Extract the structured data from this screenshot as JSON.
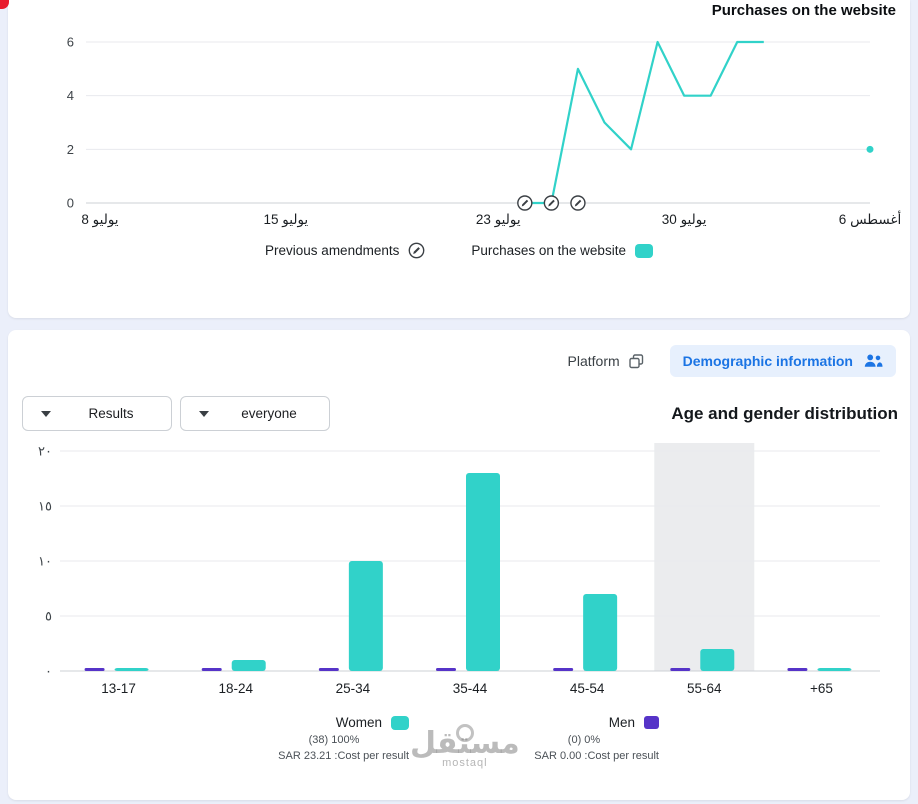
{
  "colors": {
    "teal": "#31d2c9",
    "purple": "#5634c8",
    "blue": "#1b74e4",
    "blue_bg": "#e7f0fd",
    "grid": "#e8eaee",
    "zero_axis": "#ccd0d6",
    "highlight_band": "#ebecee"
  },
  "purchases_panel": {
    "title": "Purchases on the website",
    "legend": [
      {
        "label": "Previous amendments",
        "icon": "pencil-circle-icon"
      },
      {
        "label": "Purchases on the website",
        "swatch": "#31d2c9"
      }
    ],
    "chart_data": {
      "type": "line",
      "title": "Purchases on the website",
      "ylim": [
        0,
        6
      ],
      "y_ticks": [
        0,
        2,
        4,
        6
      ],
      "xlim_days": [
        0,
        29
      ],
      "x_ticks": [
        {
          "day": 0,
          "label": "8 يوليو"
        },
        {
          "day": 7,
          "label": "15 يوليو"
        },
        {
          "day": 15,
          "label": "23 يوليو"
        },
        {
          "day": 22,
          "label": "30 يوليو"
        },
        {
          "day": 29,
          "label": "أغسطس 6"
        }
      ],
      "series": [
        {
          "name": "Purchases on the website",
          "color": "#31d2c9",
          "points": [
            [
              16,
              0
            ],
            [
              17,
              0
            ],
            [
              18,
              5
            ],
            [
              19,
              3
            ],
            [
              20,
              2
            ],
            [
              21,
              6
            ],
            [
              22,
              4
            ],
            [
              23,
              4
            ],
            [
              24,
              6
            ],
            [
              25,
              6
            ]
          ]
        }
      ],
      "isolated_point": [
        29,
        2
      ],
      "amendment_marker_days": [
        16,
        17,
        18
      ],
      "grid": true,
      "legend_position": "bottom"
    }
  },
  "demographics_panel": {
    "toolbar": {
      "platform_label": "Platform",
      "demographic_label": "Demographic information"
    },
    "filters": [
      {
        "label": "Results"
      },
      {
        "label": "everyone"
      }
    ],
    "title": "Age and gender distribution",
    "chart_data": {
      "type": "bar",
      "title": "Age and gender distribution",
      "categories": [
        "13-17",
        "18-24",
        "25-34",
        "35-44",
        "45-54",
        "55-64",
        "+65"
      ],
      "series": [
        {
          "name": "Women",
          "color": "#31d2c9",
          "values": [
            0,
            1,
            10,
            18,
            7,
            2,
            0
          ]
        },
        {
          "name": "Men",
          "color": "#5634c8",
          "values": [
            0,
            0,
            0,
            0,
            0,
            0,
            0
          ]
        }
      ],
      "ylim": [
        0,
        20
      ],
      "y_tick_values": [
        0,
        5,
        10,
        15,
        20
      ],
      "y_tick_labels": [
        "٠",
        "٥",
        "١٠",
        "١٥",
        "٢٠"
      ],
      "highlighted_category": "55-64",
      "grid": true,
      "legend_position": "bottom"
    },
    "legend": [
      {
        "name": "Women",
        "color": "#31d2c9",
        "result": "(38) 100%",
        "cost": "SAR 23.21 :Cost per result"
      },
      {
        "name": "Men",
        "color": "#5634c8",
        "result": "(0) 0%",
        "cost": "SAR 0.00 :Cost per result"
      }
    ]
  },
  "watermark": {
    "text": "مستقل",
    "sub": "mostaql"
  }
}
